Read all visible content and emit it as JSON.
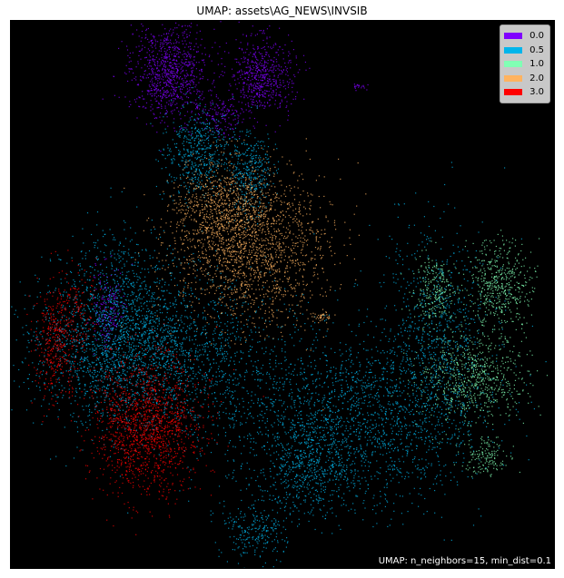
{
  "chart_data": {
    "type": "scatter",
    "title": "UMAP: assets\\AG_NEWS\\INVSIB",
    "xlabel": "",
    "ylabel": "",
    "grid": false,
    "background": "#000000",
    "legend_position": "top-right",
    "legend": [
      {
        "label": "0.0",
        "color": "#8000ff"
      },
      {
        "label": "0.5",
        "color": "#00b5eb"
      },
      {
        "label": "1.0",
        "color": "#80ffb4"
      },
      {
        "label": "2.0",
        "color": "#ffb360"
      },
      {
        "label": "3.0",
        "color": "#ff0000"
      }
    ],
    "annotation": "UMAP: n_neighbors=15, min_dist=0.1",
    "clusters": [
      {
        "label": "0.0",
        "x": 0.29,
        "y": 0.09,
        "sx": 0.035,
        "sy": 0.045,
        "n": 900
      },
      {
        "label": "0.0",
        "x": 0.46,
        "y": 0.1,
        "sx": 0.03,
        "sy": 0.035,
        "n": 600
      },
      {
        "label": "0.0",
        "x": 0.38,
        "y": 0.17,
        "sx": 0.02,
        "sy": 0.02,
        "n": 150
      },
      {
        "label": "0.0",
        "x": 0.18,
        "y": 0.53,
        "sx": 0.015,
        "sy": 0.04,
        "n": 200
      },
      {
        "label": "0.0",
        "x": 0.64,
        "y": 0.12,
        "sx": 0.006,
        "sy": 0.005,
        "n": 20
      },
      {
        "label": "0.5",
        "x": 0.34,
        "y": 0.24,
        "sx": 0.03,
        "sy": 0.04,
        "n": 500
      },
      {
        "label": "0.5",
        "x": 0.44,
        "y": 0.28,
        "sx": 0.02,
        "sy": 0.04,
        "n": 350
      },
      {
        "label": "0.5",
        "x": 0.25,
        "y": 0.6,
        "sx": 0.12,
        "sy": 0.07,
        "n": 2200
      },
      {
        "label": "0.5",
        "x": 0.2,
        "y": 0.54,
        "sx": 0.05,
        "sy": 0.08,
        "n": 800
      },
      {
        "label": "0.5",
        "x": 0.62,
        "y": 0.73,
        "sx": 0.12,
        "sy": 0.08,
        "n": 2000
      },
      {
        "label": "0.5",
        "x": 0.78,
        "y": 0.57,
        "sx": 0.05,
        "sy": 0.1,
        "n": 800
      },
      {
        "label": "0.5",
        "x": 0.45,
        "y": 0.93,
        "sx": 0.03,
        "sy": 0.03,
        "n": 250
      },
      {
        "label": "0.5",
        "x": 0.55,
        "y": 0.82,
        "sx": 0.04,
        "sy": 0.04,
        "n": 400
      },
      {
        "label": "1.0",
        "x": 0.85,
        "y": 0.65,
        "sx": 0.05,
        "sy": 0.04,
        "n": 700
      },
      {
        "label": "1.0",
        "x": 0.9,
        "y": 0.48,
        "sx": 0.03,
        "sy": 0.04,
        "n": 500
      },
      {
        "label": "1.0",
        "x": 0.78,
        "y": 0.49,
        "sx": 0.02,
        "sy": 0.03,
        "n": 250
      },
      {
        "label": "1.0",
        "x": 0.87,
        "y": 0.8,
        "sx": 0.02,
        "sy": 0.02,
        "n": 150
      },
      {
        "label": "2.0",
        "x": 0.44,
        "y": 0.41,
        "sx": 0.07,
        "sy": 0.07,
        "n": 1800
      },
      {
        "label": "2.0",
        "x": 0.38,
        "y": 0.34,
        "sx": 0.04,
        "sy": 0.04,
        "n": 500
      },
      {
        "label": "2.0",
        "x": 0.57,
        "y": 0.54,
        "sx": 0.01,
        "sy": 0.006,
        "n": 40
      },
      {
        "label": "3.0",
        "x": 0.25,
        "y": 0.74,
        "sx": 0.05,
        "sy": 0.06,
        "n": 1500
      },
      {
        "label": "3.0",
        "x": 0.08,
        "y": 0.59,
        "sx": 0.02,
        "sy": 0.05,
        "n": 350
      },
      {
        "label": "3.0",
        "x": 0.12,
        "y": 0.53,
        "sx": 0.02,
        "sy": 0.04,
        "n": 150
      }
    ]
  }
}
